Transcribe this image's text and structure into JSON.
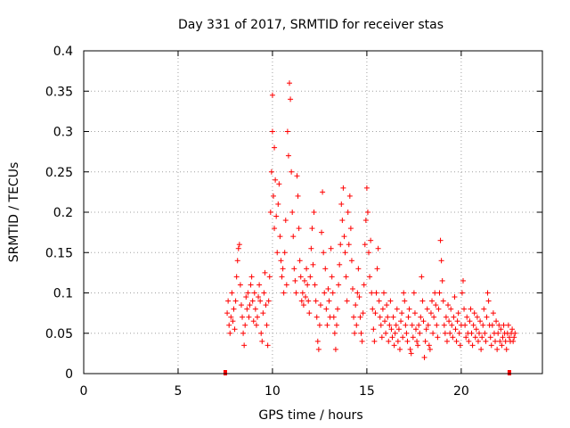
{
  "chart_data": {
    "type": "scatter",
    "title": "Day 331 of 2017, SRMTID for receiver stas",
    "xlabel": "GPS time / hours",
    "ylabel": "SRMTID / TECUs",
    "xlim": [
      0,
      24.3
    ],
    "ylim": [
      0,
      0.4
    ],
    "xticks": [
      0,
      5,
      10,
      15,
      20
    ],
    "xtick_labels": [
      "0",
      "5",
      "10",
      "15",
      "20"
    ],
    "yticks": [
      0,
      0.05,
      0.1,
      0.15,
      0.2,
      0.25,
      0.3,
      0.35,
      0.4
    ],
    "ytick_labels": [
      "0",
      "0.05",
      "0.1",
      "0.15",
      "0.2",
      "0.25",
      "0.3",
      "0.35",
      "0.4"
    ],
    "grid": true,
    "marker": "+",
    "color": "#ff0000",
    "data_span_markers": [
      7.5,
      22.55
    ],
    "series": [
      {
        "name": "SRMTID",
        "points": [
          [
            7.6,
            0.075
          ],
          [
            7.65,
            0.09
          ],
          [
            7.7,
            0.06
          ],
          [
            7.75,
            0.05
          ],
          [
            7.8,
            0.07
          ],
          [
            7.85,
            0.1
          ],
          [
            7.9,
            0.065
          ],
          [
            7.95,
            0.08
          ],
          [
            8.0,
            0.055
          ],
          [
            8.05,
            0.09
          ],
          [
            8.1,
            0.12
          ],
          [
            8.15,
            0.14
          ],
          [
            8.2,
            0.155
          ],
          [
            8.25,
            0.16
          ],
          [
            8.3,
            0.11
          ],
          [
            8.35,
            0.085
          ],
          [
            8.4,
            0.07
          ],
          [
            8.45,
            0.05
          ],
          [
            8.5,
            0.035
          ],
          [
            8.55,
            0.06
          ],
          [
            8.6,
            0.095
          ],
          [
            8.65,
            0.08
          ],
          [
            8.7,
            0.1
          ],
          [
            8.75,
            0.07
          ],
          [
            8.8,
            0.085
          ],
          [
            8.85,
            0.11
          ],
          [
            8.9,
            0.12
          ],
          [
            8.95,
            0.09
          ],
          [
            9.0,
            0.065
          ],
          [
            9.05,
            0.1
          ],
          [
            9.1,
            0.08
          ],
          [
            9.15,
            0.06
          ],
          [
            9.2,
            0.07
          ],
          [
            9.25,
            0.095
          ],
          [
            9.3,
            0.11
          ],
          [
            9.35,
            0.09
          ],
          [
            9.4,
            0.05
          ],
          [
            9.45,
            0.04
          ],
          [
            9.5,
            0.075
          ],
          [
            9.55,
            0.1
          ],
          [
            9.6,
            0.125
          ],
          [
            9.65,
            0.085
          ],
          [
            9.7,
            0.06
          ],
          [
            9.75,
            0.035
          ],
          [
            9.8,
            0.09
          ],
          [
            9.85,
            0.12
          ],
          [
            9.9,
            0.2
          ],
          [
            9.95,
            0.25
          ],
          [
            10.0,
            0.3
          ],
          [
            10.0,
            0.345
          ],
          [
            10.05,
            0.22
          ],
          [
            10.1,
            0.18
          ],
          [
            10.1,
            0.28
          ],
          [
            10.15,
            0.24
          ],
          [
            10.2,
            0.195
          ],
          [
            10.25,
            0.15
          ],
          [
            10.3,
            0.21
          ],
          [
            10.35,
            0.235
          ],
          [
            10.4,
            0.17
          ],
          [
            10.45,
            0.14
          ],
          [
            10.5,
            0.12
          ],
          [
            10.55,
            0.13
          ],
          [
            10.6,
            0.1
          ],
          [
            10.65,
            0.15
          ],
          [
            10.7,
            0.19
          ],
          [
            10.75,
            0.11
          ],
          [
            10.8,
            0.3
          ],
          [
            10.85,
            0.27
          ],
          [
            10.9,
            0.36
          ],
          [
            10.95,
            0.34
          ],
          [
            11.0,
            0.25
          ],
          [
            11.05,
            0.2
          ],
          [
            11.1,
            0.17
          ],
          [
            11.15,
            0.13
          ],
          [
            11.2,
            0.115
          ],
          [
            11.25,
            0.1
          ],
          [
            11.3,
            0.245
          ],
          [
            11.35,
            0.22
          ],
          [
            11.4,
            0.18
          ],
          [
            11.45,
            0.14
          ],
          [
            11.5,
            0.12
          ],
          [
            11.55,
            0.09
          ],
          [
            11.6,
            0.1
          ],
          [
            11.65,
            0.085
          ],
          [
            11.7,
            0.115
          ],
          [
            11.75,
            0.095
          ],
          [
            11.8,
            0.13
          ],
          [
            11.85,
            0.11
          ],
          [
            11.9,
            0.09
          ],
          [
            11.95,
            0.075
          ],
          [
            12.0,
            0.12
          ],
          [
            12.05,
            0.155
          ],
          [
            12.1,
            0.18
          ],
          [
            12.15,
            0.135
          ],
          [
            12.2,
            0.2
          ],
          [
            12.25,
            0.11
          ],
          [
            12.3,
            0.09
          ],
          [
            12.35,
            0.07
          ],
          [
            12.4,
            0.04
          ],
          [
            12.45,
            0.03
          ],
          [
            12.5,
            0.06
          ],
          [
            12.55,
            0.085
          ],
          [
            12.6,
            0.175
          ],
          [
            12.65,
            0.225
          ],
          [
            12.7,
            0.15
          ],
          [
            12.75,
            0.1
          ],
          [
            12.8,
            0.13
          ],
          [
            12.85,
            0.08
          ],
          [
            12.9,
            0.06
          ],
          [
            12.95,
            0.105
          ],
          [
            13.0,
            0.09
          ],
          [
            13.05,
            0.07
          ],
          [
            13.1,
            0.155
          ],
          [
            13.15,
            0.12
          ],
          [
            13.2,
            0.1
          ],
          [
            13.25,
            0.07
          ],
          [
            13.3,
            0.05
          ],
          [
            13.35,
            0.03
          ],
          [
            13.4,
            0.06
          ],
          [
            13.45,
            0.08
          ],
          [
            13.5,
            0.11
          ],
          [
            13.55,
            0.135
          ],
          [
            13.6,
            0.16
          ],
          [
            13.65,
            0.21
          ],
          [
            13.7,
            0.19
          ],
          [
            13.75,
            0.23
          ],
          [
            13.8,
            0.17
          ],
          [
            13.85,
            0.15
          ],
          [
            13.9,
            0.12
          ],
          [
            13.95,
            0.09
          ],
          [
            14.0,
            0.2
          ],
          [
            14.05,
            0.16
          ],
          [
            14.1,
            0.22
          ],
          [
            14.15,
            0.18
          ],
          [
            14.2,
            0.14
          ],
          [
            14.25,
            0.105
          ],
          [
            14.3,
            0.07
          ],
          [
            14.35,
            0.05
          ],
          [
            14.4,
            0.085
          ],
          [
            14.45,
            0.06
          ],
          [
            14.5,
            0.1
          ],
          [
            14.55,
            0.13
          ],
          [
            14.6,
            0.095
          ],
          [
            14.65,
            0.07
          ],
          [
            14.7,
            0.05
          ],
          [
            14.75,
            0.04
          ],
          [
            14.8,
            0.075
          ],
          [
            14.85,
            0.11
          ],
          [
            14.9,
            0.16
          ],
          [
            14.95,
            0.19
          ],
          [
            15.0,
            0.23
          ],
          [
            15.05,
            0.2
          ],
          [
            15.1,
            0.15
          ],
          [
            15.15,
            0.12
          ],
          [
            15.2,
            0.165
          ],
          [
            15.25,
            0.1
          ],
          [
            15.3,
            0.08
          ],
          [
            15.35,
            0.055
          ],
          [
            15.4,
            0.04
          ],
          [
            15.45,
            0.075
          ],
          [
            15.5,
            0.1
          ],
          [
            15.55,
            0.13
          ],
          [
            15.6,
            0.155
          ],
          [
            15.65,
            0.09
          ],
          [
            15.7,
            0.07
          ],
          [
            15.75,
            0.06
          ],
          [
            15.8,
            0.045
          ],
          [
            15.85,
            0.08
          ],
          [
            15.9,
            0.1
          ],
          [
            15.95,
            0.065
          ],
          [
            16.0,
            0.05
          ],
          [
            16.05,
            0.085
          ],
          [
            16.1,
            0.07
          ],
          [
            16.15,
            0.04
          ],
          [
            16.2,
            0.06
          ],
          [
            16.25,
            0.09
          ],
          [
            16.3,
            0.055
          ],
          [
            16.35,
            0.045
          ],
          [
            16.4,
            0.07
          ],
          [
            16.45,
            0.035
          ],
          [
            16.5,
            0.05
          ],
          [
            16.55,
            0.06
          ],
          [
            16.6,
            0.08
          ],
          [
            16.65,
            0.04
          ],
          [
            16.7,
            0.055
          ],
          [
            16.75,
            0.03
          ],
          [
            16.8,
            0.065
          ],
          [
            16.85,
            0.075
          ],
          [
            16.9,
            0.045
          ],
          [
            16.95,
            0.1
          ],
          [
            17.0,
            0.09
          ],
          [
            17.05,
            0.06
          ],
          [
            17.1,
            0.05
          ],
          [
            17.15,
            0.04
          ],
          [
            17.2,
            0.07
          ],
          [
            17.25,
            0.08
          ],
          [
            17.3,
            0.03
          ],
          [
            17.35,
            0.025
          ],
          [
            17.4,
            0.06
          ],
          [
            17.45,
            0.045
          ],
          [
            17.5,
            0.1
          ],
          [
            17.55,
            0.075
          ],
          [
            17.6,
            0.055
          ],
          [
            17.65,
            0.04
          ],
          [
            17.7,
            0.035
          ],
          [
            17.75,
            0.06
          ],
          [
            17.8,
            0.05
          ],
          [
            17.85,
            0.07
          ],
          [
            17.9,
            0.12
          ],
          [
            17.95,
            0.09
          ],
          [
            18.0,
            0.065
          ],
          [
            18.05,
            0.02
          ],
          [
            18.1,
            0.04
          ],
          [
            18.15,
            0.055
          ],
          [
            18.2,
            0.08
          ],
          [
            18.25,
            0.06
          ],
          [
            18.3,
            0.035
          ],
          [
            18.35,
            0.03
          ],
          [
            18.4,
            0.075
          ],
          [
            18.45,
            0.09
          ],
          [
            18.5,
            0.05
          ],
          [
            18.55,
            0.07
          ],
          [
            18.6,
            0.1
          ],
          [
            18.65,
            0.085
          ],
          [
            18.7,
            0.06
          ],
          [
            18.75,
            0.045
          ],
          [
            18.8,
            0.08
          ],
          [
            18.85,
            0.1
          ],
          [
            18.9,
            0.165
          ],
          [
            18.95,
            0.14
          ],
          [
            19.0,
            0.115
          ],
          [
            19.05,
            0.09
          ],
          [
            19.1,
            0.06
          ],
          [
            19.15,
            0.05
          ],
          [
            19.2,
            0.07
          ],
          [
            19.25,
            0.04
          ],
          [
            19.3,
            0.085
          ],
          [
            19.35,
            0.065
          ],
          [
            19.4,
            0.05
          ],
          [
            19.45,
            0.08
          ],
          [
            19.5,
            0.06
          ],
          [
            19.55,
            0.045
          ],
          [
            19.6,
            0.07
          ],
          [
            19.65,
            0.095
          ],
          [
            19.7,
            0.055
          ],
          [
            19.75,
            0.04
          ],
          [
            19.8,
            0.065
          ],
          [
            19.85,
            0.075
          ],
          [
            19.9,
            0.05
          ],
          [
            19.95,
            0.035
          ],
          [
            20.0,
            0.06
          ],
          [
            20.05,
            0.1
          ],
          [
            20.1,
            0.115
          ],
          [
            20.15,
            0.08
          ],
          [
            20.2,
            0.06
          ],
          [
            20.25,
            0.045
          ],
          [
            20.3,
            0.07
          ],
          [
            20.35,
            0.05
          ],
          [
            20.4,
            0.04
          ],
          [
            20.45,
            0.065
          ],
          [
            20.5,
            0.08
          ],
          [
            20.55,
            0.05
          ],
          [
            20.6,
            0.035
          ],
          [
            20.65,
            0.06
          ],
          [
            20.7,
            0.075
          ],
          [
            20.75,
            0.045
          ],
          [
            20.8,
            0.055
          ],
          [
            20.85,
            0.07
          ],
          [
            20.9,
            0.04
          ],
          [
            20.95,
            0.05
          ],
          [
            21.0,
            0.065
          ],
          [
            21.05,
            0.03
          ],
          [
            21.1,
            0.045
          ],
          [
            21.15,
            0.06
          ],
          [
            21.2,
            0.08
          ],
          [
            21.25,
            0.05
          ],
          [
            21.3,
            0.04
          ],
          [
            21.35,
            0.07
          ],
          [
            21.4,
            0.1
          ],
          [
            21.45,
            0.09
          ],
          [
            21.5,
            0.06
          ],
          [
            21.55,
            0.045
          ],
          [
            21.6,
            0.035
          ],
          [
            21.65,
            0.06
          ],
          [
            21.7,
            0.075
          ],
          [
            21.75,
            0.05
          ],
          [
            21.8,
            0.04
          ],
          [
            21.85,
            0.065
          ],
          [
            21.9,
            0.03
          ],
          [
            21.95,
            0.05
          ],
          [
            22.0,
            0.06
          ],
          [
            22.05,
            0.04
          ],
          [
            22.1,
            0.055
          ],
          [
            22.15,
            0.035
          ],
          [
            22.2,
            0.045
          ],
          [
            22.25,
            0.06
          ],
          [
            22.3,
            0.05
          ],
          [
            22.35,
            0.04
          ],
          [
            22.4,
            0.03
          ],
          [
            22.45,
            0.05
          ],
          [
            22.5,
            0.06
          ],
          [
            22.55,
            0.045
          ],
          [
            22.6,
            0.04
          ],
          [
            22.65,
            0.05
          ],
          [
            22.7,
            0.055
          ],
          [
            22.75,
            0.04
          ],
          [
            22.8,
            0.045
          ],
          [
            22.85,
            0.05
          ]
        ]
      }
    ]
  }
}
